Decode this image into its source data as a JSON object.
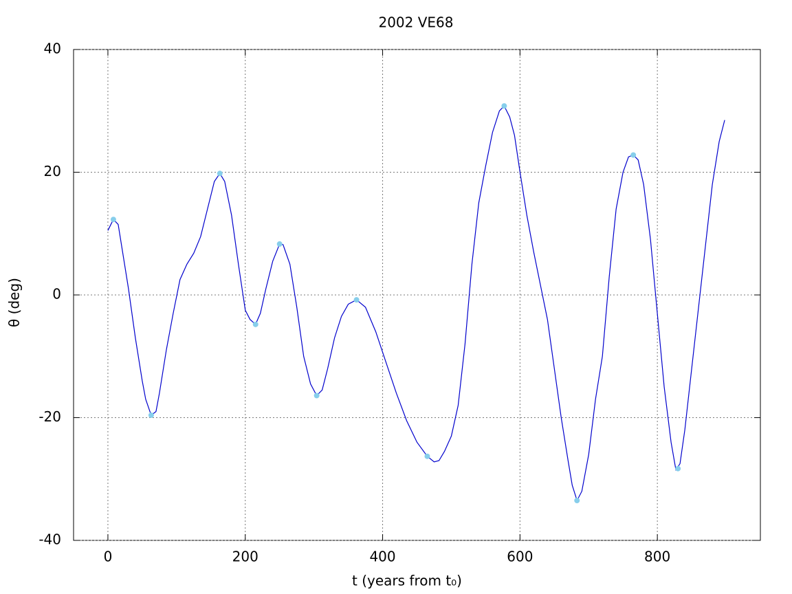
{
  "chart_data": {
    "type": "line",
    "title": "2002 VE68",
    "x_label": "t  (years from t₀)",
    "y_label": "θ  (deg)",
    "x": [
      0,
      8,
      15,
      20,
      30,
      40,
      50,
      55,
      63,
      70,
      75,
      85,
      95,
      105,
      115,
      125,
      135,
      145,
      155,
      163,
      170,
      180,
      190,
      200,
      207,
      215,
      222,
      230,
      240,
      250,
      255,
      265,
      275,
      285,
      295,
      304,
      312,
      320,
      330,
      340,
      350,
      362,
      375,
      390,
      405,
      420,
      435,
      450,
      465,
      475,
      482,
      490,
      500,
      510,
      520,
      530,
      540,
      550,
      560,
      570,
      577,
      585,
      592,
      600,
      610,
      620,
      630,
      640,
      650,
      660,
      670,
      676,
      683,
      690,
      700,
      710,
      720,
      730,
      740,
      750,
      758,
      765,
      772,
      780,
      790,
      800,
      810,
      820,
      827,
      833,
      840,
      850,
      860,
      870,
      880,
      890,
      898
    ],
    "values": [
      10.5,
      12.3,
      11.5,
      8,
      1,
      -7,
      -14,
      -17,
      -19.6,
      -19,
      -16,
      -9,
      -3,
      2.5,
      5,
      6.8,
      9.5,
      14,
      18.5,
      19.8,
      18.5,
      13,
      5,
      -2.5,
      -4,
      -4.8,
      -3,
      1,
      5.5,
      8.3,
      8.2,
      5,
      -2,
      -10,
      -14.5,
      -16.4,
      -15.5,
      -12,
      -7,
      -3.5,
      -1.5,
      -0.8,
      -2,
      -6,
      -11,
      -16,
      -20.5,
      -24,
      -26.3,
      -27.2,
      -27,
      -25.5,
      -23,
      -18,
      -8,
      5,
      15,
      21,
      26.5,
      30,
      30.8,
      29,
      26,
      20,
      13,
      7,
      1.5,
      -4,
      -12,
      -20,
      -27,
      -31,
      -33.5,
      -32,
      -26,
      -17,
      -10,
      3,
      14,
      20,
      22.5,
      22.8,
      22,
      18,
      9,
      -3,
      -15,
      -24,
      -28.5,
      -27.5,
      -22,
      -12,
      -2,
      8,
      18,
      25,
      28.5
    ],
    "color": "#0000cc",
    "extrema": {
      "x": [
        8,
        63,
        163,
        215,
        250,
        304,
        362,
        465,
        577,
        683,
        765,
        830
      ],
      "values": [
        12.3,
        -19.6,
        19.8,
        -4.8,
        8.3,
        -16.4,
        -0.8,
        -26.3,
        30.8,
        -33.5,
        22.8,
        -28.3
      ],
      "color": "#87ceeb"
    },
    "xlim": [
      -50,
      950
    ],
    "ylim": [
      -40,
      40
    ],
    "xticks": [
      0,
      200,
      400,
      600,
      800
    ],
    "yticks": [
      -40,
      -20,
      0,
      20,
      40
    ],
    "grid": true
  }
}
